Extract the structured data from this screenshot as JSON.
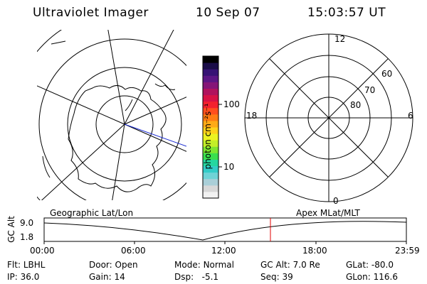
{
  "header": {
    "title": "Ultraviolet Imager",
    "date": "10 Sep 07",
    "time": "15:03:57 UT"
  },
  "colorbar": {
    "unit_label": "photon cm⁻²s⁻¹",
    "tick_labels": [
      "100",
      "10"
    ],
    "colors": [
      "#f2f2f2",
      "#d8d8d8",
      "#aacfd8",
      "#6fd3d6",
      "#33ccc8",
      "#25d7a0",
      "#3adf4e",
      "#7ee630",
      "#c3ef28",
      "#ecf321",
      "#ffd21a",
      "#ffaa16",
      "#ff7c13",
      "#ff4f1d",
      "#f3212e",
      "#d71245",
      "#b0125d",
      "#851577",
      "#5b1684",
      "#361374",
      "#1a0d48",
      "#000000"
    ]
  },
  "left_map": {
    "caption": "Geographic Lat/Lon",
    "line_color": "#000000",
    "highlight_color": "#1a2bd1"
  },
  "right_polar": {
    "caption": "Apex MLat/MLT",
    "mlt_labels": {
      "top": "12",
      "left": "18",
      "right": "6",
      "bottom": "0"
    },
    "lat_labels": [
      "60",
      "70",
      "80"
    ]
  },
  "altitude_strip": {
    "axis_label": "GC Alt",
    "y_labels": [
      "9.0",
      "1.8"
    ],
    "x_labels": [
      "00:00",
      "06:00",
      "12:00",
      "18:00",
      "23:59"
    ],
    "current_marker_color": "#e00000"
  },
  "status": {
    "row1": [
      {
        "label": "Flt:",
        "value": "LBHL"
      },
      {
        "label": "Door:",
        "value": "Open"
      },
      {
        "label": "Mode:",
        "value": "Normal"
      },
      {
        "label": "GC Alt:",
        "value": "7.0 Re"
      },
      {
        "label": "GLat:",
        "value": "-80.0"
      }
    ],
    "row2": [
      {
        "label": "IP:",
        "value": "36.0"
      },
      {
        "label": "Gain:",
        "value": "14"
      },
      {
        "label": "Dsp:",
        "value": "-5.1"
      },
      {
        "label": "Seq:",
        "value": "39"
      },
      {
        "label": "GLon:",
        "value": "116.6"
      }
    ]
  }
}
